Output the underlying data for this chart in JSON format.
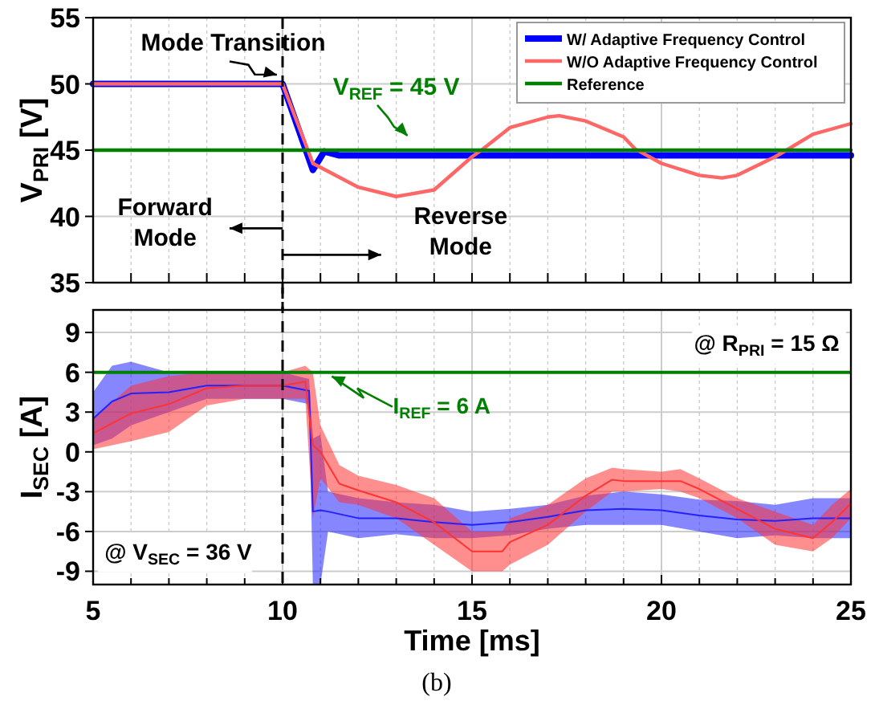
{
  "chart_data": [
    {
      "type": "line",
      "ylabel": "V$_{PRI}$ [V]",
      "xlim": [
        5,
        25
      ],
      "ylim": [
        35,
        55
      ],
      "xticks": [
        {
          "value": 5,
          "label": null
        },
        {
          "value": 6,
          "label": null
        },
        {
          "value": 7,
          "label": null
        },
        {
          "value": 8,
          "label": null
        },
        {
          "value": 9,
          "label": null
        },
        {
          "value": 10,
          "label": null
        },
        {
          "value": 11,
          "label": null
        },
        {
          "value": 12,
          "label": null
        },
        {
          "value": 13,
          "label": null
        },
        {
          "value": 14,
          "label": null
        },
        {
          "value": 15,
          "label": null
        },
        {
          "value": 16,
          "label": null
        },
        {
          "value": 17,
          "label": null
        },
        {
          "value": 18,
          "label": null
        },
        {
          "value": 19,
          "label": null
        },
        {
          "value": 20,
          "label": null
        },
        {
          "value": 21,
          "label": null
        },
        {
          "value": 22,
          "label": null
        },
        {
          "value": 23,
          "label": null
        },
        {
          "value": 24,
          "label": null
        },
        {
          "value": 25,
          "label": null
        }
      ],
      "yticks": [
        35,
        40,
        45,
        50,
        55
      ],
      "tick_labels": "y",
      "grid": true,
      "legend": "top right",
      "line_style": "solid",
      "marker": "none",
      "series": [
        {
          "name": "W/ Adaptive Frequency Control",
          "color": "#0000ff",
          "x": [
            5,
            10,
            10.8,
            11.1,
            11.5,
            25
          ],
          "values": [
            50,
            50,
            43.5,
            44.9,
            44.6,
            44.6
          ]
        },
        {
          "name": "W/O Adaptive Frequency Control",
          "color": "#ff6666",
          "x": [
            5,
            10,
            10.8,
            12,
            13,
            14,
            15,
            15.25,
            16,
            17,
            17.3,
            18,
            19,
            19.3,
            20,
            21,
            21.6,
            22,
            23,
            23.3,
            24,
            25
          ],
          "values": [
            50,
            50,
            44,
            42.2,
            41.5,
            42,
            44.5,
            45,
            46.7,
            47.5,
            47.6,
            47.2,
            46,
            45.1,
            44,
            43.1,
            42.9,
            43.1,
            44.5,
            45,
            46.2,
            47
          ]
        },
        {
          "name": "Reference",
          "color": "#008000",
          "x": [
            5,
            25
          ],
          "values": [
            45,
            45
          ]
        }
      ],
      "ref_lines": [
        {
          "axis": "x",
          "value": 10,
          "color": "#000000",
          "line_style": "dashed"
        }
      ],
      "annotations": [
        "Mode Transition",
        "V$_{REF}$ = 45 V",
        "Forward Mode",
        "Reverse Mode"
      ]
    },
    {
      "type": "line",
      "xlabel": "Time [ms]",
      "ylabel": "I$_{SEC}$ [A]",
      "xlim": [
        5,
        25
      ],
      "ylim": [
        -10,
        10.7
      ],
      "xticks": [
        5,
        {
          "value": 6,
          "label": null
        },
        {
          "value": 7,
          "label": null
        },
        {
          "value": 8,
          "label": null
        },
        {
          "value": 9,
          "label": null
        },
        10,
        {
          "value": 11,
          "label": null
        },
        {
          "value": 12,
          "label": null
        },
        {
          "value": 13,
          "label": null
        },
        {
          "value": 14,
          "label": null
        },
        15,
        {
          "value": 16,
          "label": null
        },
        {
          "value": 17,
          "label": null
        },
        {
          "value": 18,
          "label": null
        },
        {
          "value": 19,
          "label": null
        },
        20,
        {
          "value": 21,
          "label": null
        },
        {
          "value": 22,
          "label": null
        },
        {
          "value": 23,
          "label": null
        },
        {
          "value": 24,
          "label": null
        },
        25
      ],
      "yticks": [
        -9,
        -6,
        -3,
        0,
        3,
        6,
        9
      ],
      "grid": true,
      "line_style": "solid",
      "marker": "none",
      "series": [
        {
          "color": "#2222ff",
          "x": [
            5,
            5.5,
            6,
            7,
            8,
            10,
            10.7,
            10.8,
            11,
            11.2,
            12,
            13,
            14,
            15,
            16,
            17,
            18,
            19,
            20,
            21,
            22,
            23,
            24,
            25
          ],
          "values": [
            2.5,
            3.8,
            4.4,
            4.5,
            5,
            5,
            4.6,
            -4.5,
            -4.4,
            -4.5,
            -5,
            -5,
            -5.3,
            -5.5,
            -5.3,
            -4.9,
            -4.4,
            -4.3,
            -4.4,
            -4.8,
            -5.1,
            -5.2,
            -5,
            -5
          ],
          "lower": [
            0.5,
            1,
            2,
            3,
            4,
            4,
            3.6,
            -10,
            -10,
            -6,
            -6.5,
            -6.2,
            -6.5,
            -6.5,
            -6.3,
            -5.8,
            -5.5,
            -5.5,
            -5.5,
            -6,
            -6.5,
            -6.3,
            -6.5,
            -6.5
          ],
          "upper": [
            4.5,
            6.5,
            6.8,
            6,
            6,
            6,
            5.5,
            1,
            1.3,
            -3,
            -3.5,
            -3.8,
            -4,
            -4.5,
            -4.3,
            -4,
            -3.3,
            -3,
            -3.2,
            -3.6,
            -3.7,
            -4,
            -3.5,
            -3.5
          ]
        },
        {
          "color": "#ff3333",
          "x": [
            5,
            6,
            7,
            8,
            9,
            10,
            10.6,
            10.8,
            11,
            11.5,
            12,
            13,
            14,
            15,
            15.8,
            16,
            17,
            18,
            18.7,
            19,
            20,
            20.5,
            21,
            22,
            23,
            24,
            24.5,
            25
          ],
          "values": [
            1.4,
            2.9,
            3.6,
            4.8,
            5,
            5,
            5.3,
            0.5,
            0,
            -2.4,
            -2.9,
            -3.8,
            -5.3,
            -7.5,
            -7.5,
            -6.8,
            -5.5,
            -3.3,
            -2.1,
            -2.2,
            -2.2,
            -2.2,
            -2.8,
            -4.3,
            -5.8,
            -6.5,
            -5.3,
            -3.9
          ],
          "lower": [
            0.2,
            0.8,
            1.5,
            3.5,
            4,
            4,
            4,
            -5,
            -2,
            -3.8,
            -4,
            -5,
            -7,
            -9,
            -9,
            -8.5,
            -7,
            -4.5,
            -3,
            -3,
            -2.8,
            -3,
            -3.5,
            -5,
            -7,
            -7.5,
            -6.5,
            -5
          ],
          "upper": [
            2.5,
            5,
            5.7,
            6,
            6,
            6,
            6.5,
            6,
            2,
            -1,
            -1.8,
            -2.5,
            -3.5,
            -6,
            -6,
            -5,
            -4,
            -2,
            -1.2,
            -1.3,
            -1.5,
            -1.3,
            -2,
            -3.5,
            -4.5,
            -5.5,
            -4,
            -2.8
          ]
        }
      ],
      "ref_lines": [
        {
          "axis": "y",
          "value": 6,
          "color": "#008000",
          "line_style": "solid"
        },
        {
          "axis": "x",
          "value": 10,
          "color": "#000000",
          "line_style": "dashed"
        }
      ],
      "annotations": [
        "@ R$_{PRI}$ = 15 Ω",
        "I$_{REF}$ = 6 A",
        "@ V$_{SEC}$ = 36 V",
        "(b)"
      ]
    }
  ]
}
